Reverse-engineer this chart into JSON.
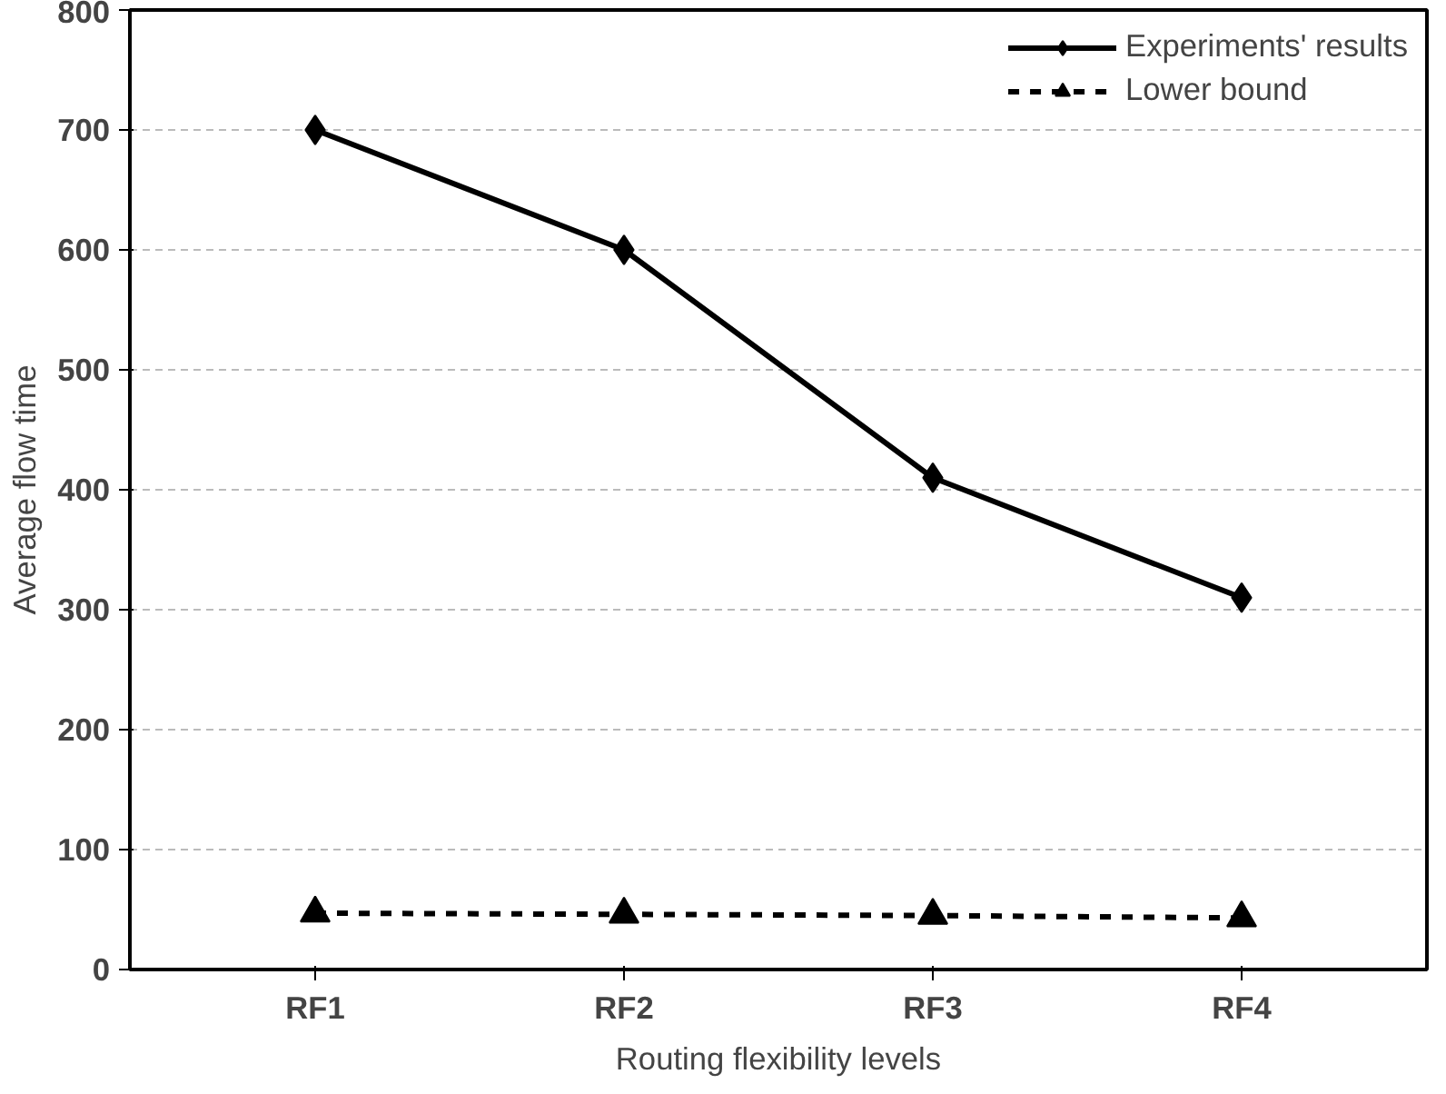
{
  "chart_data": {
    "type": "line",
    "xlabel": "Routing flexibility levels",
    "ylabel": "Average flow time",
    "categories": [
      "RF1",
      "RF2",
      "RF3",
      "RF4"
    ],
    "series": [
      {
        "name": "Experiments' results",
        "color": "#000000",
        "values": [
          700,
          600,
          410,
          310
        ],
        "marker": "diamond",
        "line_style": "solid"
      },
      {
        "name": "Lower bound",
        "color": "#000000",
        "values": [
          47,
          46,
          45,
          43
        ],
        "marker": "triangle",
        "line_style": "dashed"
      }
    ],
    "ylim": [
      0,
      800
    ],
    "yticks": [
      0,
      100,
      200,
      300,
      400,
      500,
      600,
      700,
      800
    ],
    "grid": "y",
    "legend": "top right"
  }
}
